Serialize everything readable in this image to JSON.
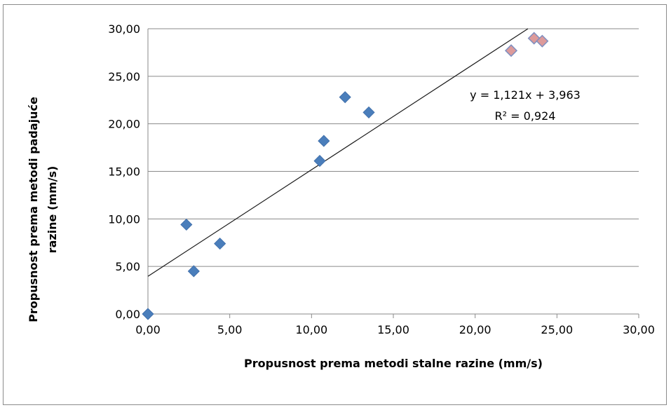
{
  "chart_data": {
    "type": "scatter",
    "xlabel": "Propusnost  prema metodi stalne razine (mm/s)",
    "ylabel_lines": [
      "Propusnost  prema metodi padajuće",
      "razine (mm/s)"
    ],
    "xlim": [
      0,
      30
    ],
    "ylim": [
      0,
      30
    ],
    "x_ticks": [
      "0,00",
      "5,00",
      "10,00",
      "15,00",
      "20,00",
      "25,00",
      "30,00"
    ],
    "y_ticks": [
      "0,00",
      "5,00",
      "10,00",
      "15,00",
      "20,00",
      "25,00",
      "30,00"
    ],
    "grid": "horizontal",
    "series": [
      {
        "color": "#4a7ebb",
        "points": [
          {
            "x": 0.0,
            "y": 0.0
          },
          {
            "x": 2.35,
            "y": 9.4
          },
          {
            "x": 2.8,
            "y": 4.5
          },
          {
            "x": 4.4,
            "y": 7.4
          },
          {
            "x": 10.5,
            "y": 16.1
          },
          {
            "x": 10.75,
            "y": 18.2
          },
          {
            "x": 12.05,
            "y": 22.8
          },
          {
            "x": 13.5,
            "y": 21.2
          }
        ]
      },
      {
        "color": "#dd9a9a",
        "points": [
          {
            "x": 22.2,
            "y": 27.7
          },
          {
            "x": 23.6,
            "y": 29.0
          },
          {
            "x": 24.1,
            "y": 28.7
          }
        ]
      }
    ],
    "trendline": {
      "slope": 1.121,
      "intercept": 3.963,
      "equation": "y = 1,121x + 3,963",
      "r2_label": "R² = 0,924"
    }
  }
}
